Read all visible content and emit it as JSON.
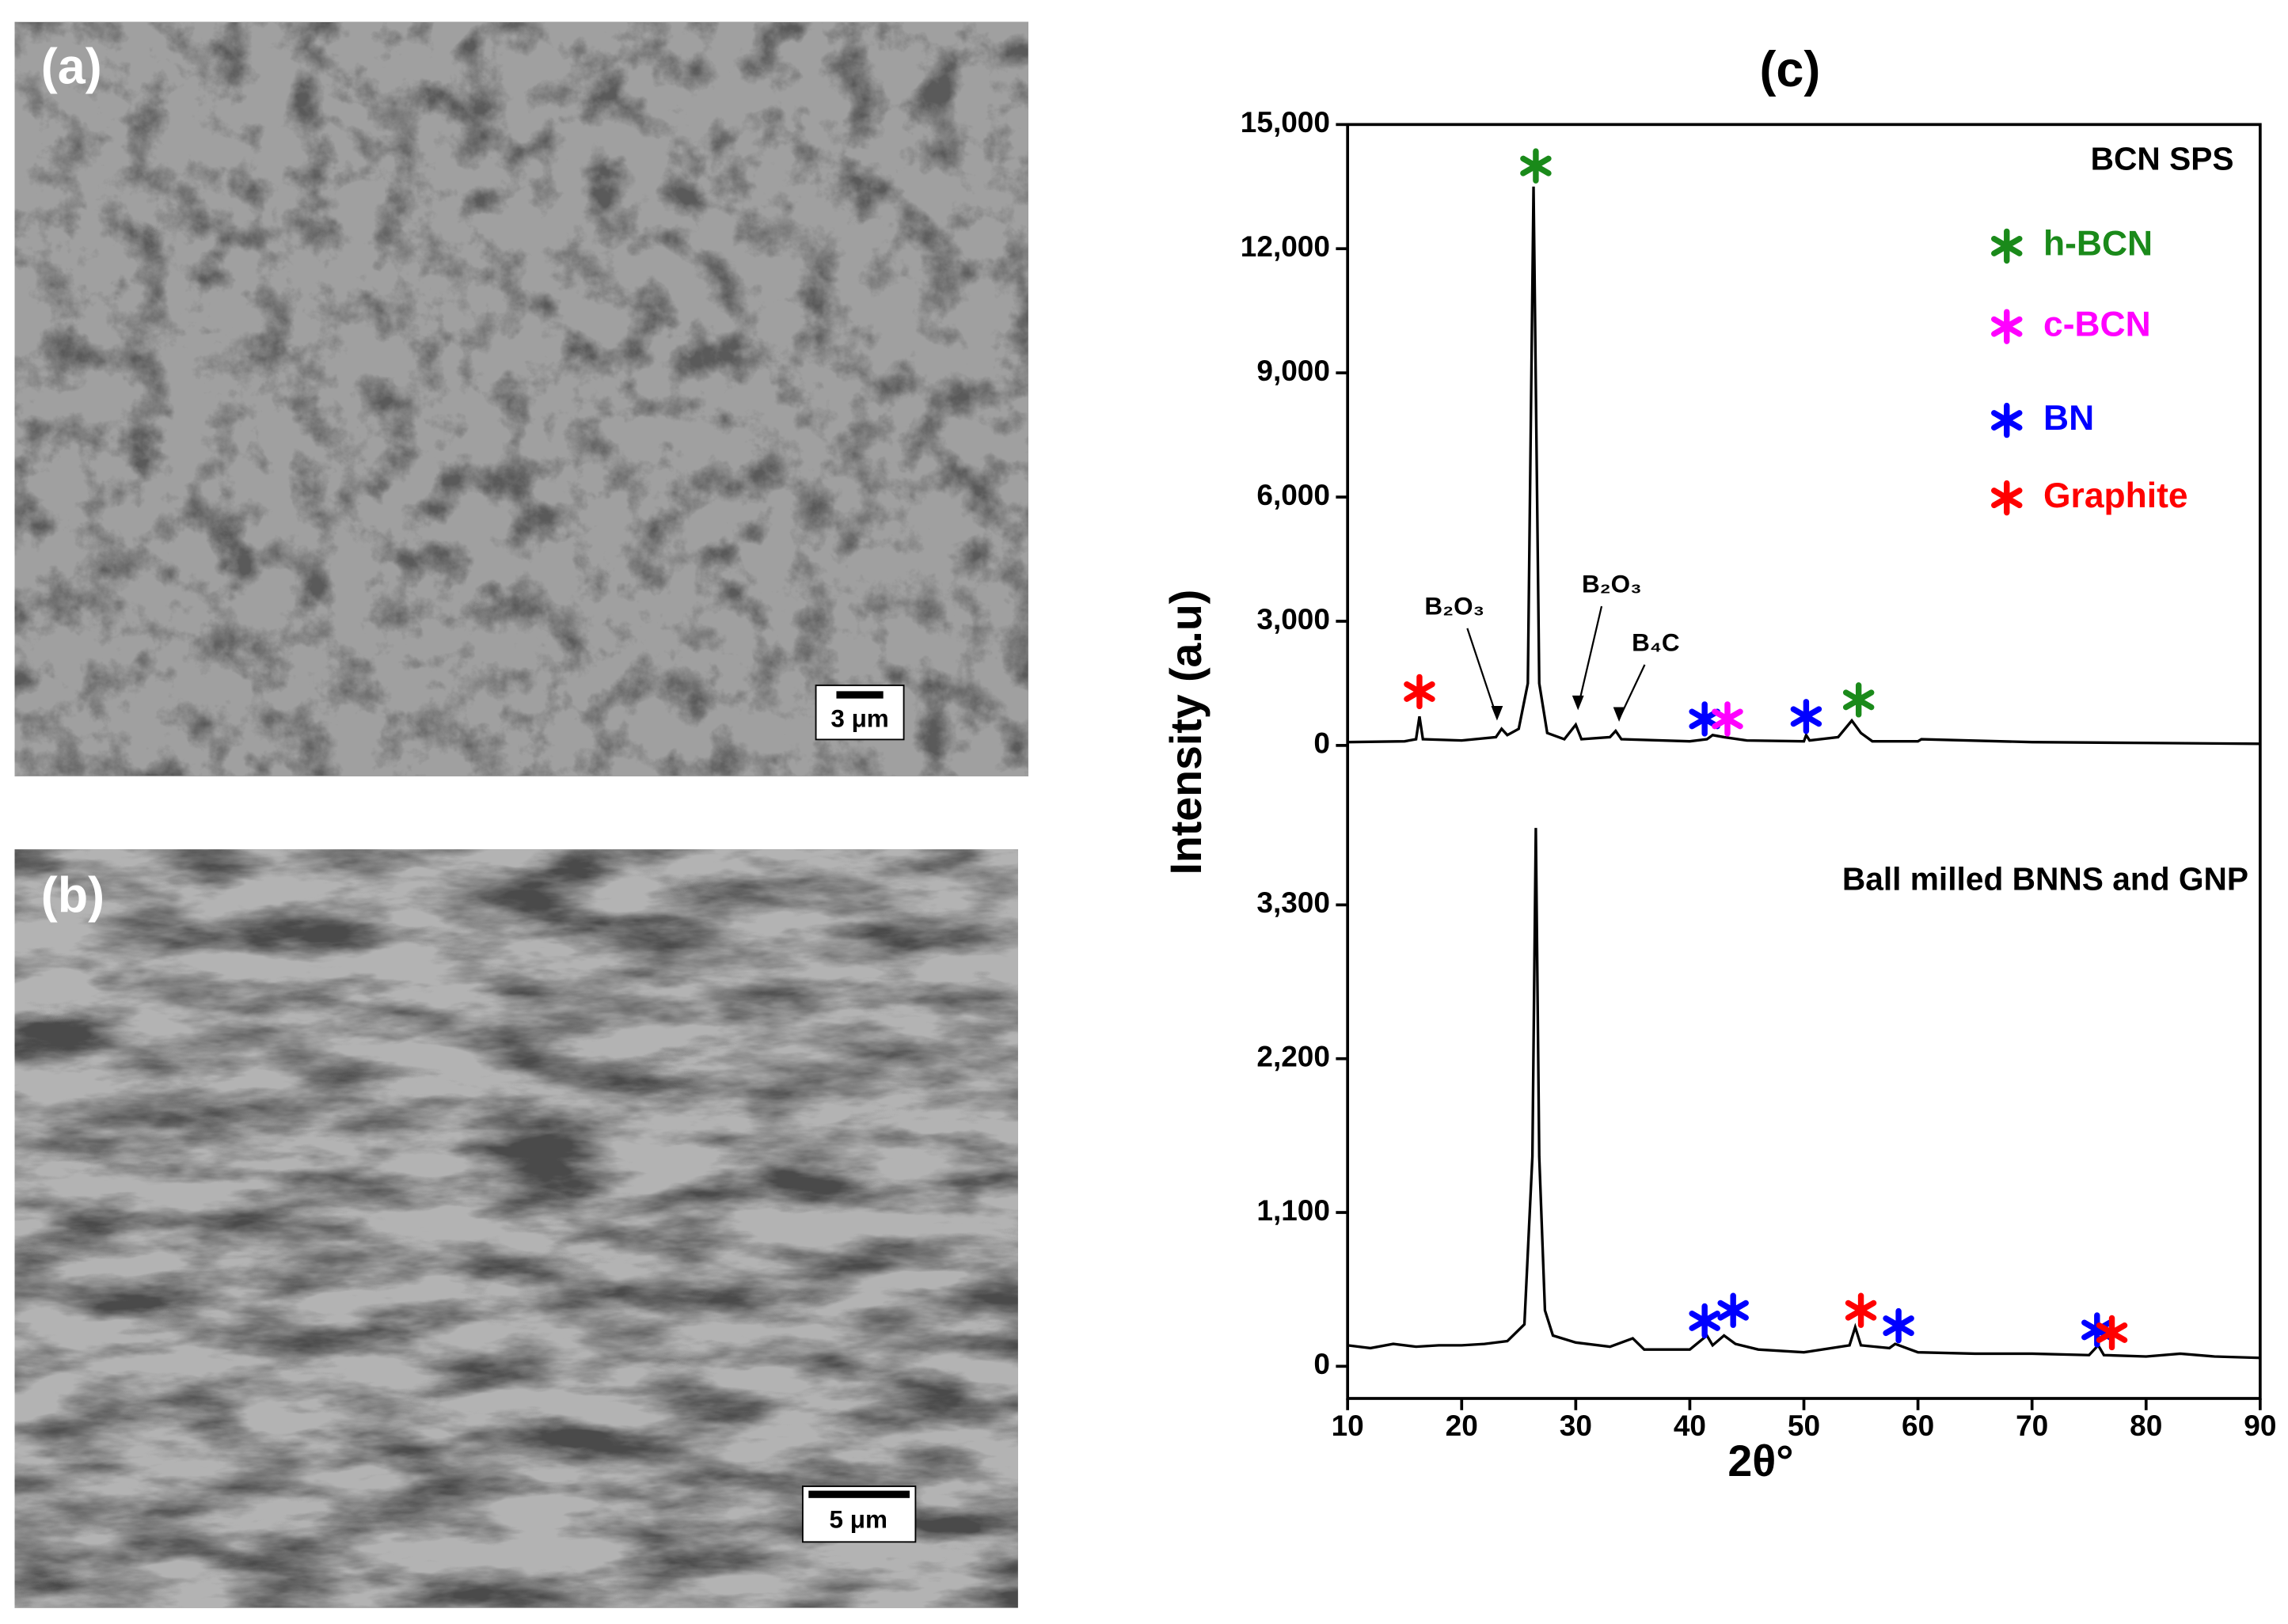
{
  "panels": [
    {
      "label": "(a)",
      "scale_bar": "3 μm"
    },
    {
      "label": "(b)",
      "scale_bar": "5 μm"
    }
  ],
  "chart_data": [
    {
      "type": "line",
      "title": "(c)",
      "ylabel": "Intensity (a.u)",
      "text": "BCN SPS",
      "ylim": [
        -600,
        15000
      ],
      "yticks": [
        0,
        {
          "value": 3000,
          "label": "3,000"
        },
        {
          "value": 6000,
          "label": "6,000"
        },
        {
          "value": 9000,
          "label": "9,000"
        },
        {
          "value": 12000,
          "label": "12,000"
        },
        {
          "value": 15000,
          "label": "15,000"
        }
      ],
      "series": [
        {
          "color": "#000000",
          "x": [
            10,
            15,
            16,
            16.3,
            16.6,
            20,
            23,
            23.5,
            24,
            25,
            25.8,
            26.3,
            26.8,
            27.5,
            29,
            30,
            30.5,
            33,
            33.5,
            34,
            40,
            41.5,
            42,
            43,
            45,
            50,
            50.2,
            50.5,
            53,
            54.2,
            55,
            56,
            60,
            60.3,
            70,
            80,
            90
          ],
          "values": [
            80,
            100,
            150,
            700,
            150,
            120,
            200,
            400,
            250,
            400,
            1500,
            13500,
            1500,
            300,
            150,
            500,
            150,
            200,
            350,
            150,
            100,
            150,
            250,
            200,
            120,
            100,
            250,
            120,
            200,
            600,
            300,
            100,
            100,
            150,
            80,
            60,
            40
          ]
        }
      ],
      "markers": [
        {
          "x": 16.3,
          "y": 1300,
          "color": "#ff0000"
        },
        {
          "x": 26.5,
          "y": 14000,
          "color": "#1a8a1a"
        },
        {
          "x": 41.3,
          "y": 640,
          "color": "#0000ff"
        },
        {
          "x": 43.3,
          "y": 640,
          "color": "#ff00ff"
        },
        {
          "x": 50.2,
          "y": 700,
          "color": "#0000ff"
        },
        {
          "x": 54.8,
          "y": 1100,
          "color": "#1a8a1a"
        }
      ],
      "annotations": [
        {
          "text": "B₂O₃",
          "x": 23.1,
          "y": 530
        },
        {
          "text": "B₂O₃",
          "x": 30.2,
          "y": 780
        },
        {
          "text": "B₄C",
          "x": 33.8,
          "y": 500
        }
      ],
      "legend": [
        {
          "name": "h-BCN",
          "color": "#1a8a1a"
        },
        {
          "name": "c-BCN",
          "color": "#ff00ff"
        },
        {
          "name": "BN",
          "color": "#0000ff"
        },
        {
          "name": "Graphite",
          "color": "#ff0000"
        }
      ]
    },
    {
      "type": "line",
      "text": "Ball milled BNNS and GNP",
      "xlabel": "2θ°",
      "xlim": [
        10,
        90
      ],
      "xticks": [
        10,
        20,
        30,
        40,
        50,
        60,
        70,
        80,
        90
      ],
      "ylim": [
        -230,
        4200
      ],
      "yticks": [
        0,
        {
          "value": 1100,
          "label": "1,100"
        },
        {
          "value": 2200,
          "label": "2,200"
        },
        {
          "value": 3300,
          "label": "3,300"
        }
      ],
      "series": [
        {
          "color": "#000000",
          "x": [
            10,
            12,
            14,
            16,
            18,
            20,
            22,
            24,
            25.5,
            26.2,
            26.5,
            26.8,
            27.3,
            28,
            30,
            33,
            35,
            36,
            40,
            41.5,
            42,
            43,
            44,
            46,
            50,
            54,
            54.5,
            55,
            57.5,
            58,
            60,
            65,
            70,
            75,
            75.8,
            76.3,
            80,
            83,
            86,
            90
          ],
          "values": [
            150,
            130,
            160,
            140,
            150,
            150,
            160,
            180,
            300,
            1500,
            3850,
            1500,
            400,
            220,
            170,
            140,
            200,
            120,
            120,
            220,
            150,
            220,
            160,
            120,
            100,
            150,
            280,
            150,
            130,
            160,
            100,
            90,
            90,
            80,
            150,
            80,
            70,
            90,
            70,
            60
          ]
        }
      ],
      "markers": [
        {
          "x": 41.3,
          "y": 325,
          "color": "#0000ff"
        },
        {
          "x": 43.8,
          "y": 400,
          "color": "#0000ff"
        },
        {
          "x": 55,
          "y": 400,
          "color": "#ff0000"
        },
        {
          "x": 58.3,
          "y": 290,
          "color": "#0000ff"
        },
        {
          "x": 75.7,
          "y": 260,
          "color": "#0000ff"
        },
        {
          "x": 77,
          "y": 240,
          "color": "#ff0000"
        }
      ]
    }
  ]
}
